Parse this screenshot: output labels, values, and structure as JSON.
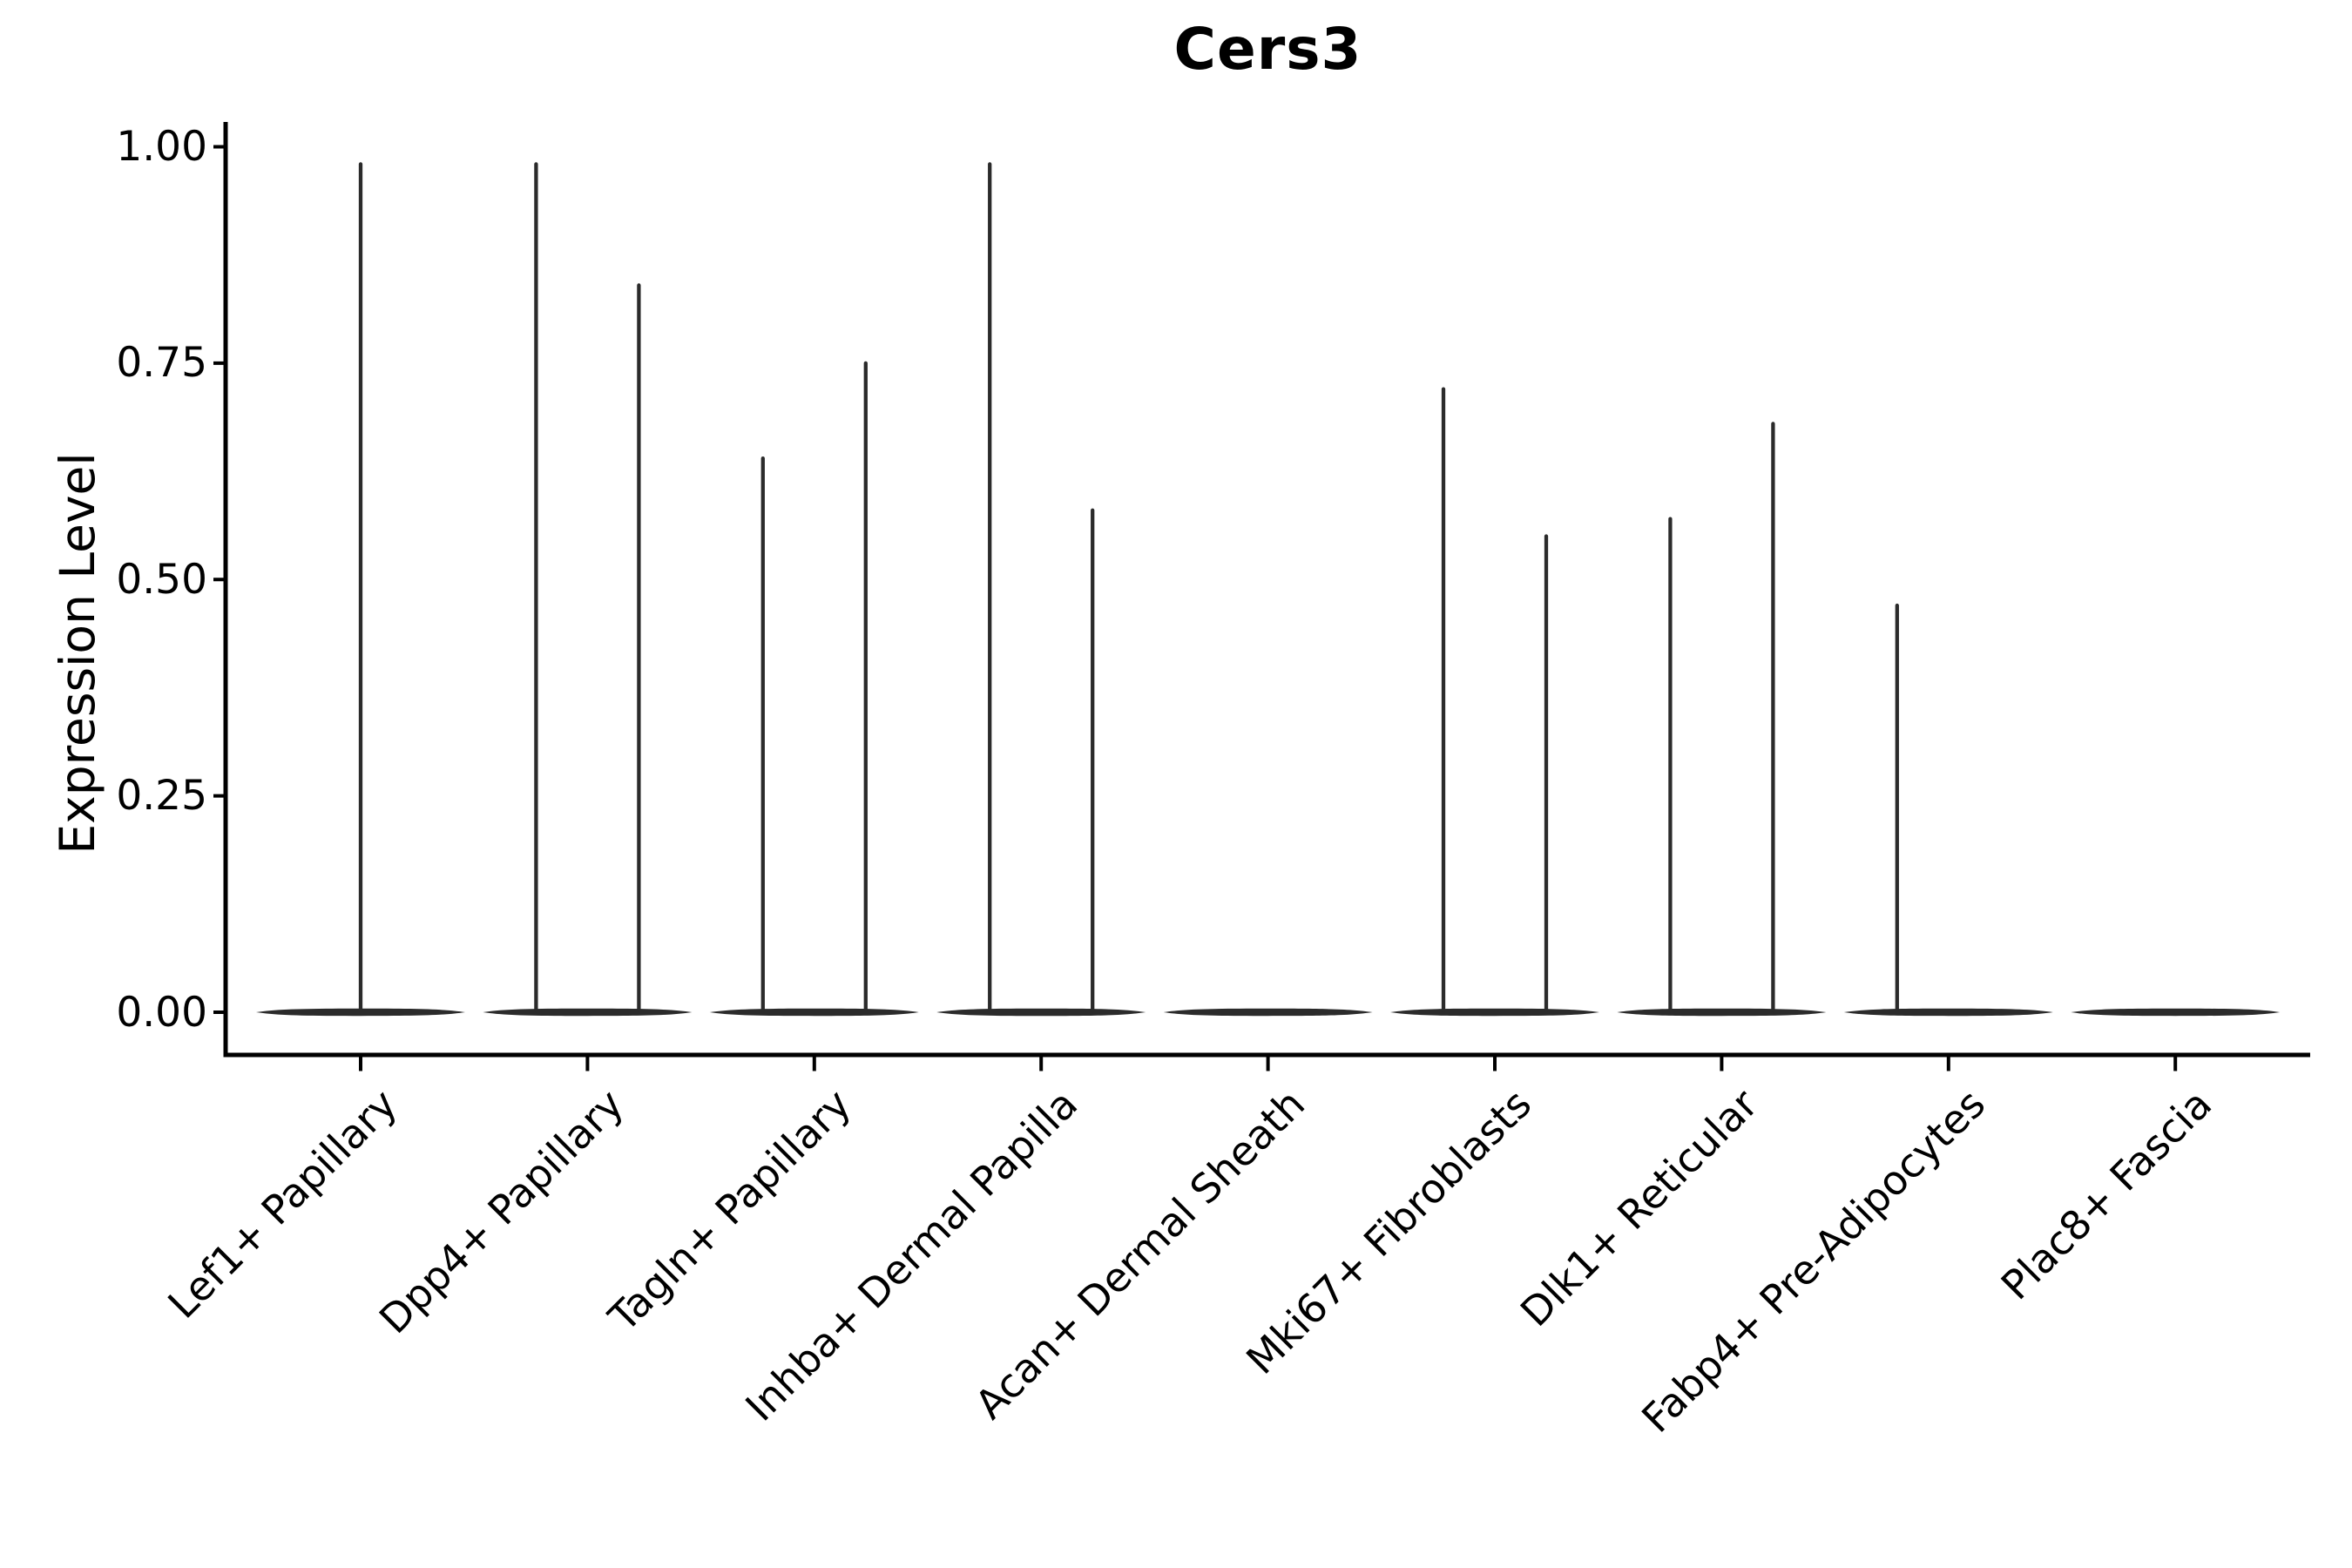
{
  "page": {
    "background": "#ffffff"
  },
  "title": {
    "text": "Cers3"
  },
  "y_axis": {
    "label": "Expression Level",
    "tick_labels": [
      "0.00",
      "0.25",
      "0.50",
      "0.75",
      "1.00"
    ],
    "tick_values": [
      0,
      0.25,
      0.5,
      0.75,
      1.0
    ]
  },
  "chart_data": {
    "type": "violin",
    "title": "Cers3",
    "xlabel": "",
    "ylabel": "Expression Level",
    "ylim": [
      0,
      1.0
    ],
    "yticks": [
      0,
      0.25,
      0.5,
      0.75,
      1.0
    ],
    "ytick_labels": [
      "0.00",
      "0.25",
      "0.50",
      "0.75",
      "1.00"
    ],
    "grid": false,
    "legend": "none",
    "ink_color": "#2b2b2b",
    "axis_color": "#000000",
    "base_line_value": 0,
    "categories": [
      "Lef1+ Papillary",
      "Dpp4+ Papillary",
      "Tagln+ Papillary",
      "Inhba+ Dermal Papilla",
      "Acan+ Dermal Sheath",
      "Mki67+ Fibroblasts",
      "Dlk1+ Reticular",
      "Fabp4+ Pre-Adipocytes",
      "Plac8+ Fascia"
    ],
    "violins": [
      {
        "category": "Lef1+ Papillary",
        "tails": [
          {
            "slot": "center",
            "value": 0.98
          }
        ]
      },
      {
        "category": "Dpp4+ Papillary",
        "tails": [
          {
            "slot": "left",
            "value": 0.98
          },
          {
            "slot": "right",
            "value": 0.84
          }
        ]
      },
      {
        "category": "Tagln+ Papillary",
        "tails": [
          {
            "slot": "left",
            "value": 0.64
          },
          {
            "slot": "right",
            "value": 0.75
          }
        ]
      },
      {
        "category": "Inhba+ Dermal Papilla",
        "tails": [
          {
            "slot": "left",
            "value": 0.98
          },
          {
            "slot": "right",
            "value": 0.58
          }
        ]
      },
      {
        "category": "Acan+ Dermal Sheath",
        "tails": []
      },
      {
        "category": "Mki67+ Fibroblasts",
        "tails": [
          {
            "slot": "left",
            "value": 0.72
          },
          {
            "slot": "right",
            "value": 0.55
          }
        ]
      },
      {
        "category": "Dlk1+ Reticular",
        "tails": [
          {
            "slot": "left",
            "value": 0.57
          },
          {
            "slot": "right",
            "value": 0.68
          }
        ]
      },
      {
        "category": "Fabp4+ Pre-Adipocytes",
        "tails": [
          {
            "slot": "left",
            "value": 0.47
          }
        ]
      },
      {
        "category": "Plac8+ Fascia",
        "tails": []
      }
    ]
  }
}
